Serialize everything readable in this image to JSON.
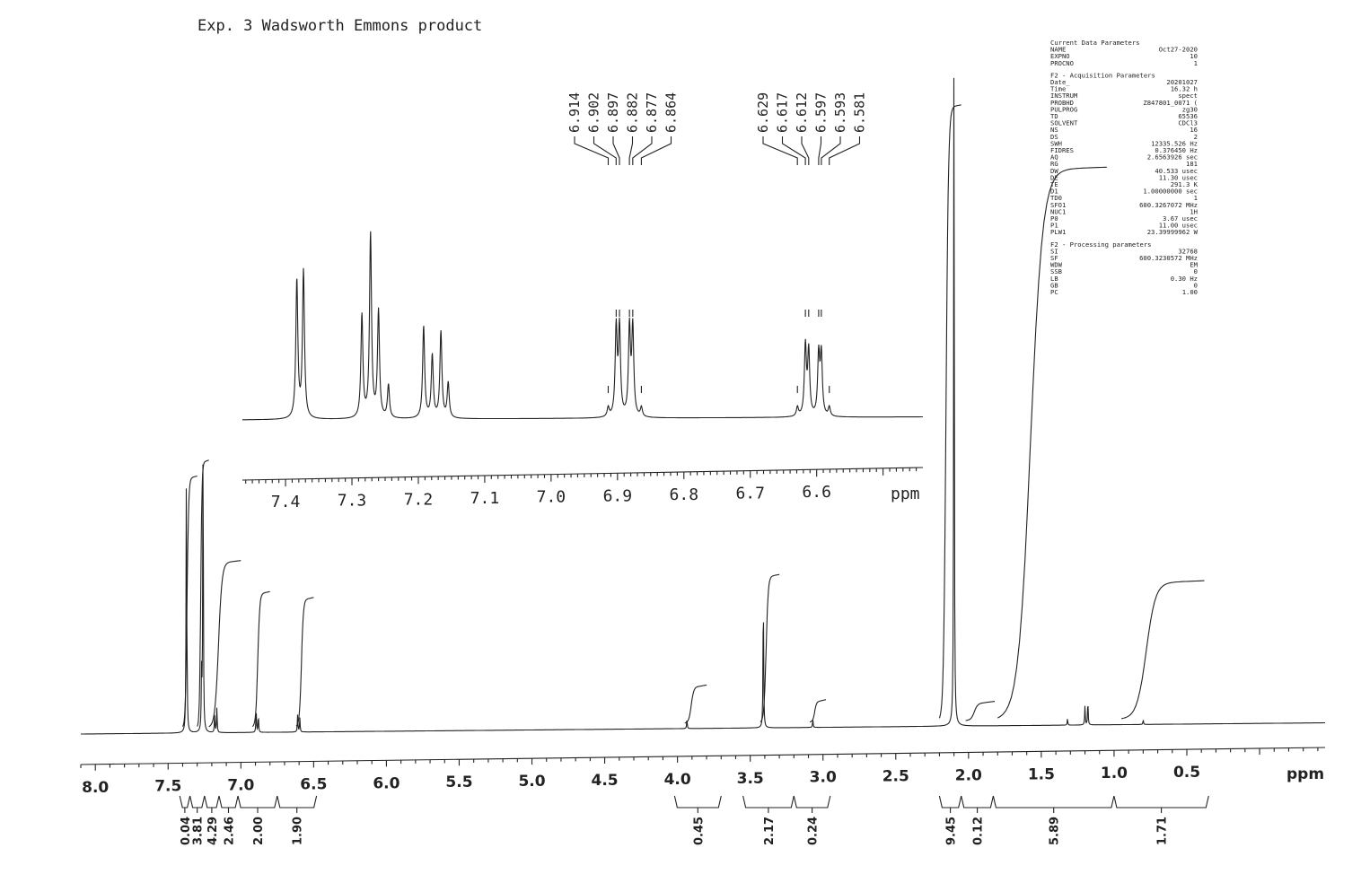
{
  "chart_data": [
    {
      "type": "line",
      "chart_id": "main",
      "title": "Exp. 3 Wadsworth Emmons product",
      "xlabel": "ppm",
      "xlim": [
        8.1,
        -0.45
      ],
      "x_reversed": true,
      "ticks": [
        "8.0",
        "7.5",
        "7.0",
        "6.5",
        "6.0",
        "5.5",
        "5.0",
        "4.5",
        "4.0",
        "3.5",
        "3.0",
        "2.5",
        "2.0",
        "1.5",
        "1.0",
        "0.5"
      ],
      "peaks": [
        {
          "ppm": 7.375,
          "height": 0.755
        },
        {
          "ppm": 7.37,
          "height": 0.15
        },
        {
          "ppm": 7.26,
          "height": 1.0
        },
        {
          "ppm": 7.27,
          "height": 0.18
        },
        {
          "ppm": 7.165,
          "height": 0.08
        },
        {
          "ppm": 7.18,
          "height": 0.06
        },
        {
          "ppm": 6.895,
          "height": 0.07
        },
        {
          "ppm": 6.88,
          "height": 0.055
        },
        {
          "ppm": 6.61,
          "height": 0.055
        },
        {
          "ppm": 6.595,
          "height": 0.045
        },
        {
          "ppm": 3.935,
          "height": 0.03
        },
        {
          "ppm": 3.41,
          "height": 0.45
        },
        {
          "ppm": 3.07,
          "height": 0.025
        },
        {
          "ppm": 2.1,
          "height": 2.3
        },
        {
          "ppm": 1.18,
          "height": 0.08
        },
        {
          "ppm": 1.2,
          "height": 0.06
        },
        {
          "ppm": 1.32,
          "height": 0.02
        },
        {
          "ppm": 0.8,
          "height": 0.015
        }
      ],
      "integral_curves": [
        {
          "from": 7.4,
          "to": 7.3,
          "rise": 0.79
        },
        {
          "from": 7.3,
          "to": 7.22,
          "rise": 0.84
        },
        {
          "from": 7.22,
          "to": 7.0,
          "rise": 0.52
        },
        {
          "from": 6.92,
          "to": 6.8,
          "rise": 0.42
        },
        {
          "from": 6.62,
          "to": 6.5,
          "rise": 0.4
        },
        {
          "from": 3.95,
          "to": 3.8,
          "rise": 0.11
        },
        {
          "from": 3.43,
          "to": 3.3,
          "rise": 0.46
        },
        {
          "from": 3.09,
          "to": 2.98,
          "rise": 0.06
        },
        {
          "from": 2.2,
          "to": 2.05,
          "rise": 1.95
        },
        {
          "from": 2.02,
          "to": 1.82,
          "rise": 0.05
        },
        {
          "from": 1.8,
          "to": 1.05,
          "rise": 1.75
        },
        {
          "from": 0.95,
          "to": 0.38,
          "rise": 0.43
        }
      ],
      "integrals": [
        {
          "value": "0.04",
          "from": 7.42,
          "to": 7.35
        },
        {
          "value": "3.81",
          "from": 7.35,
          "to": 7.25
        },
        {
          "value": "4.29",
          "from": 7.25,
          "to": 7.15
        },
        {
          "value": "2.46",
          "from": 7.15,
          "to": 7.02
        },
        {
          "value": "2.00",
          "from": 7.02,
          "to": 6.75
        },
        {
          "value": "1.90",
          "from": 6.75,
          "to": 6.48
        },
        {
          "value": "0.45",
          "from": 4.02,
          "to": 3.7
        },
        {
          "value": "2.17",
          "from": 3.55,
          "to": 3.2
        },
        {
          "value": "0.24",
          "from": 3.2,
          "to": 2.95
        },
        {
          "value": "9.45",
          "from": 2.2,
          "to": 2.05
        },
        {
          "value": "0.12",
          "from": 2.05,
          "to": 1.83
        },
        {
          "value": "5.89",
          "from": 1.83,
          "to": 1.0
        },
        {
          "value": "1.71",
          "from": 1.0,
          "to": 0.35
        }
      ]
    },
    {
      "type": "line",
      "chart_id": "inset",
      "xlabel": "ppm",
      "xlim": [
        7.465,
        6.44
      ],
      "x_reversed": true,
      "ticks": [
        "7.4",
        "7.3",
        "7.2",
        "7.1",
        "7.0",
        "6.9",
        "6.8",
        "6.7",
        "6.6"
      ],
      "peaks": [
        {
          "ppm": 7.383,
          "height": 0.75
        },
        {
          "ppm": 7.373,
          "height": 0.8
        },
        {
          "ppm": 7.285,
          "height": 0.56
        },
        {
          "ppm": 7.272,
          "height": 1.0
        },
        {
          "ppm": 7.26,
          "height": 0.58
        },
        {
          "ppm": 7.245,
          "height": 0.18
        },
        {
          "ppm": 7.192,
          "height": 0.5
        },
        {
          "ppm": 7.179,
          "height": 0.34
        },
        {
          "ppm": 7.166,
          "height": 0.47
        },
        {
          "ppm": 7.155,
          "height": 0.19
        },
        {
          "ppm": 6.914,
          "height": 0.05
        },
        {
          "ppm": 6.902,
          "height": 0.48
        },
        {
          "ppm": 6.897,
          "height": 0.48
        },
        {
          "ppm": 6.882,
          "height": 0.48
        },
        {
          "ppm": 6.877,
          "height": 0.48
        },
        {
          "ppm": 6.864,
          "height": 0.05
        },
        {
          "ppm": 6.629,
          "height": 0.05
        },
        {
          "ppm": 6.617,
          "height": 0.38
        },
        {
          "ppm": 6.612,
          "height": 0.35
        },
        {
          "ppm": 6.597,
          "height": 0.33
        },
        {
          "ppm": 6.593,
          "height": 0.33
        },
        {
          "ppm": 6.581,
          "height": 0.05
        }
      ],
      "peak_labels_group1": [
        "6.914",
        "6.902",
        "6.897",
        "6.882",
        "6.877",
        "6.864"
      ],
      "peak_labels_group2": [
        "6.629",
        "6.617",
        "6.612",
        "6.597",
        "6.593",
        "6.581"
      ]
    }
  ],
  "parameters": {
    "block1": [
      [
        "Current Data Parameters",
        ""
      ],
      [
        "NAME",
        "Oct27-2020"
      ],
      [
        "EXPNO",
        "10"
      ],
      [
        "PROCNO",
        "1"
      ]
    ],
    "block2": [
      [
        "F2 - Acquisition Parameters",
        ""
      ],
      [
        "Date_",
        "20201027"
      ],
      [
        "Time",
        "16.32 h"
      ],
      [
        "INSTRUM",
        "spect"
      ],
      [
        "PROBHD",
        "Z847801_0071 ("
      ],
      [
        "PULPROG",
        "zg30"
      ],
      [
        "TD",
        "65536"
      ],
      [
        "SOLVENT",
        "CDCl3"
      ],
      [
        "NS",
        "16"
      ],
      [
        "DS",
        "2"
      ],
      [
        "SWH",
        "12335.526 Hz"
      ],
      [
        "FIDRES",
        "0.376450 Hz"
      ],
      [
        "AQ",
        "2.6563926 sec"
      ],
      [
        "RG",
        "181"
      ],
      [
        "DW",
        "40.533 usec"
      ],
      [
        "DE",
        "11.30 usec"
      ],
      [
        "TE",
        "291.3 K"
      ],
      [
        "D1",
        "1.00000000 sec"
      ],
      [
        "TD0",
        "1"
      ],
      [
        "SFO1",
        "600.3267072 MHz"
      ],
      [
        "NUC1",
        "1H"
      ],
      [
        "P0",
        "3.67 usec"
      ],
      [
        "P1",
        "11.00 usec"
      ],
      [
        "PLW1",
        "23.39999962 W"
      ]
    ],
    "block3": [
      [
        "F2 - Processing parameters",
        ""
      ],
      [
        "SI",
        "32768"
      ],
      [
        "SF",
        "600.3230572 MHz"
      ],
      [
        "WDW",
        "EM"
      ],
      [
        "SSB",
        "0"
      ],
      [
        "LB",
        "0.30 Hz"
      ],
      [
        "GB",
        "0"
      ],
      [
        "PC",
        "1.00"
      ]
    ]
  }
}
